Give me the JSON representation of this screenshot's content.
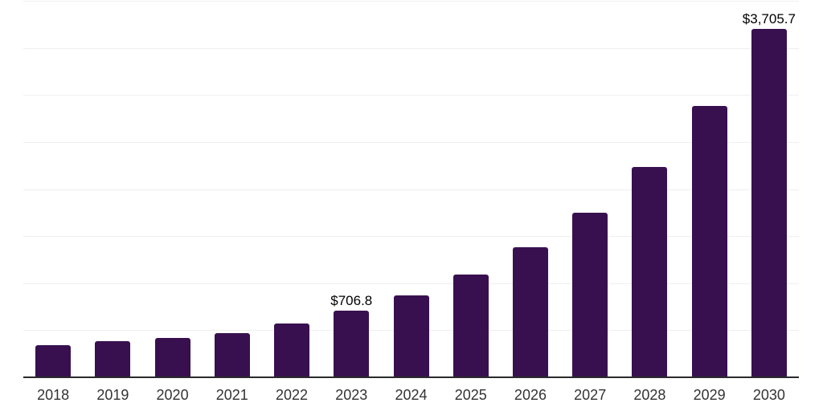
{
  "chart_data": {
    "type": "bar",
    "title": "",
    "xlabel": "",
    "ylabel": "",
    "categories": [
      "2018",
      "2019",
      "2020",
      "2021",
      "2022",
      "2023",
      "2024",
      "2025",
      "2026",
      "2027",
      "2028",
      "2029",
      "2030"
    ],
    "values": [
      340,
      380,
      420,
      470,
      575,
      706.8,
      870,
      1095,
      1380,
      1745,
      2235,
      2885,
      3705.7
    ],
    "data_labels": {
      "2023": "$706.8",
      "2030": "$3,705.7"
    },
    "ylim": [
      0,
      4000
    ],
    "grid_step": 500,
    "grid": true,
    "y_axis_labels_visible": false,
    "legend": "none",
    "colors": {
      "bar": "#38104f",
      "grid": "#efefef",
      "axis": "#2a2a2a",
      "x_label": "#333333",
      "value_label": "#000000",
      "background": "#ffffff"
    }
  }
}
